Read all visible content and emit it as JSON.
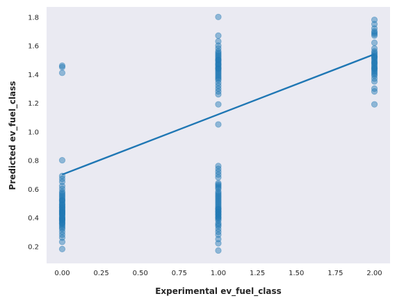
{
  "chart_data": {
    "type": "scatter",
    "title": "",
    "xlabel": "Experimental ev_fuel_class",
    "ylabel": "Predicted ev_fuel_class",
    "xlim": [
      -0.1,
      2.1
    ],
    "ylim": [
      0.08,
      1.87
    ],
    "xticks": [
      0.0,
      0.25,
      0.5,
      0.75,
      1.0,
      1.25,
      1.5,
      1.75,
      2.0
    ],
    "xtick_labels": [
      "0.00",
      "0.25",
      "0.50",
      "0.75",
      "1.00",
      "1.25",
      "1.50",
      "1.75",
      "2.00"
    ],
    "yticks": [
      0.2,
      0.4,
      0.6,
      0.8,
      1.0,
      1.2,
      1.4,
      1.6,
      1.8
    ],
    "ytick_labels": [
      "0.2",
      "0.4",
      "0.6",
      "0.8",
      "1.0",
      "1.2",
      "1.4",
      "1.6",
      "1.8"
    ],
    "grid": false,
    "colors": {
      "background": "#eaeaf2",
      "points": "#1f77b4",
      "line": "#1f77b4"
    },
    "series": [
      {
        "kind": "points",
        "x": [
          0,
          0,
          0,
          0,
          0,
          0,
          0,
          0,
          0,
          0,
          0,
          0,
          0,
          0,
          0,
          0,
          0,
          0,
          0,
          0,
          0,
          0,
          0,
          0,
          0,
          0,
          0,
          0,
          0,
          0,
          0,
          0,
          0,
          0,
          0,
          0,
          0,
          0,
          0,
          0,
          0,
          0,
          0,
          0,
          0,
          0,
          0,
          0,
          0,
          0,
          0,
          0,
          1,
          1,
          1,
          1,
          1,
          1,
          1,
          1,
          1,
          1,
          1,
          1,
          1,
          1,
          1,
          1,
          1,
          1,
          1,
          1,
          1,
          1,
          1,
          1,
          1,
          1,
          1,
          1,
          1,
          1,
          1,
          1,
          1,
          1,
          1,
          1,
          1,
          1,
          1,
          1,
          1,
          1,
          1,
          1,
          1,
          1,
          1,
          1,
          1,
          1,
          1,
          1,
          1,
          1,
          1,
          1,
          1,
          1,
          1,
          1,
          1,
          1,
          1,
          1,
          1,
          1,
          1,
          1,
          1,
          1,
          1,
          1,
          1,
          1,
          1,
          1,
          1,
          1,
          1,
          1,
          2,
          2,
          2,
          2,
          2,
          2,
          2,
          2,
          2,
          2,
          2,
          2,
          2,
          2,
          2,
          2,
          2,
          2,
          2,
          2,
          2,
          2,
          2,
          2,
          2,
          2,
          2,
          2,
          2,
          2,
          2,
          2,
          2,
          2,
          2
        ],
        "y": [
          0.18,
          0.23,
          0.26,
          0.28,
          0.3,
          0.32,
          0.34,
          0.35,
          0.36,
          0.37,
          0.38,
          0.39,
          0.4,
          0.41,
          0.42,
          0.43,
          0.44,
          0.45,
          0.46,
          0.47,
          0.48,
          0.49,
          0.5,
          0.51,
          0.52,
          0.53,
          0.54,
          0.55,
          0.56,
          0.57,
          0.58,
          0.6,
          0.62,
          0.65,
          0.67,
          0.69,
          0.8,
          1.41,
          1.45,
          1.46,
          0.33,
          0.36,
          0.39,
          0.42,
          0.44,
          0.47,
          0.49,
          0.52,
          0.4,
          0.43,
          0.45,
          0.38,
          0.17,
          0.22,
          0.25,
          0.28,
          0.3,
          0.32,
          0.34,
          0.35,
          0.36,
          0.38,
          0.39,
          0.4,
          0.41,
          0.42,
          0.43,
          0.44,
          0.45,
          0.46,
          0.47,
          0.48,
          0.49,
          0.5,
          0.51,
          0.52,
          0.53,
          0.54,
          0.55,
          0.56,
          0.57,
          0.58,
          0.6,
          0.61,
          0.62,
          0.63,
          0.64,
          0.68,
          0.7,
          0.72,
          0.74,
          0.76,
          1.05,
          1.19,
          1.26,
          1.28,
          1.3,
          1.32,
          1.34,
          1.36,
          1.37,
          1.38,
          1.39,
          1.4,
          1.41,
          1.42,
          1.43,
          1.44,
          1.45,
          1.46,
          1.47,
          1.48,
          1.49,
          1.5,
          1.51,
          1.52,
          1.53,
          1.54,
          1.55,
          1.56,
          1.58,
          1.6,
          1.63,
          1.67,
          1.8,
          0.4,
          0.44,
          0.46,
          1.44,
          1.47,
          1.5,
          0.42,
          1.19,
          1.28,
          1.3,
          1.35,
          1.37,
          1.39,
          1.4,
          1.41,
          1.42,
          1.43,
          1.44,
          1.45,
          1.46,
          1.47,
          1.48,
          1.49,
          1.5,
          1.51,
          1.52,
          1.53,
          1.54,
          1.55,
          1.56,
          1.58,
          1.62,
          1.67,
          1.68,
          1.69,
          1.7,
          1.72,
          1.75,
          1.78,
          1.44,
          1.48,
          1.52
        ]
      },
      {
        "kind": "fit-line",
        "x": [
          0,
          2
        ],
        "y": [
          0.7,
          1.54
        ]
      }
    ]
  }
}
